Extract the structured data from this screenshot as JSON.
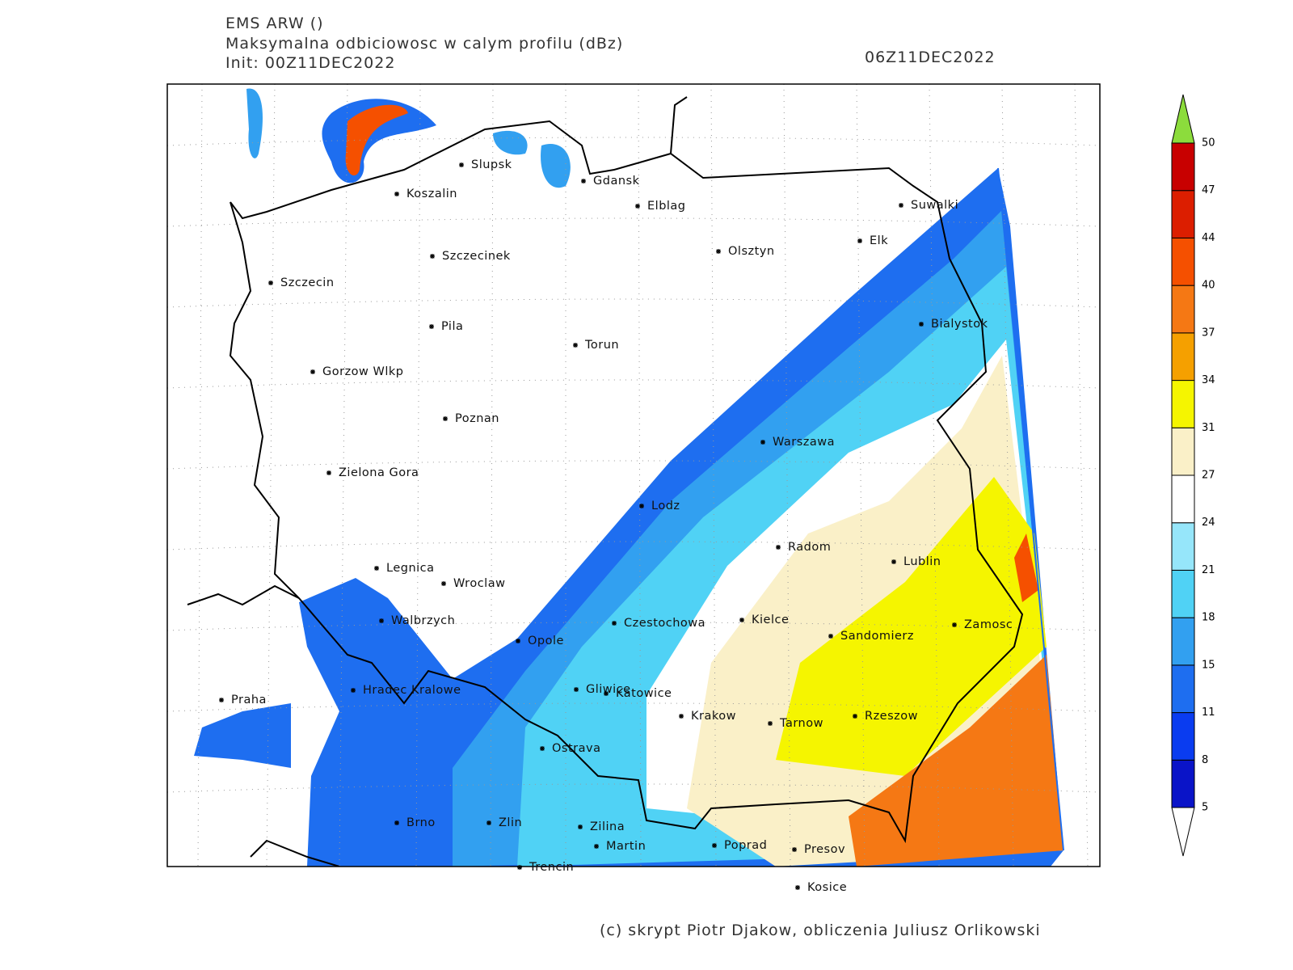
{
  "header": {
    "model": "EMS ARW ()",
    "field": "Maksymalna odbiciowosc w calym profilu (dBz)",
    "init": "Init: 00Z11DEC2022",
    "valid": "06Z11DEC2022"
  },
  "cities": [
    "Slupsk",
    "Koszalin",
    "Gdansk",
    "Elblag",
    "Suwalki",
    "Elk",
    "Olsztyn",
    "Szczecinek",
    "Szczecin",
    "Bialystok",
    "Pila",
    "Torun",
    "Gorzow Wlkp",
    "Poznan",
    "Warszawa",
    "Zielona Gora",
    "Lodz",
    "Radom",
    "Lublin",
    "Legnica",
    "Wroclaw",
    "Walbrzych",
    "Czestochowa",
    "Kielce",
    "Zamosc",
    "Sandomierz",
    "Opole",
    "Praha",
    "Hradec Kralowe",
    "Gliwice",
    "Katowice",
    "Krakow",
    "Rzeszow",
    "Tarnow",
    "Ostrava",
    "Brno",
    "Zlin",
    "Zilina",
    "Martin",
    "Poprad",
    "Presov",
    "Trencin",
    "Kosice"
  ],
  "colorbar": {
    "levels": [
      5,
      8,
      11,
      15,
      18,
      21,
      24,
      27,
      31,
      34,
      37,
      40,
      44,
      47,
      50
    ],
    "colors": [
      "#0a14c8",
      "#0a3cf0",
      "#1e6ef0",
      "#32a0f0",
      "#50d2f5",
      "#96e6fa",
      "#ffffff",
      "#faf0c8",
      "#f5f500",
      "#f5a000",
      "#f57814",
      "#f55000",
      "#dc1e00",
      "#c80000"
    ],
    "under_color": "#ffffff",
    "over_color": "#8cdc3c"
  },
  "credit": "(c) skrypt Piotr Djakow, obliczenia Juliusz Orlikowski"
}
